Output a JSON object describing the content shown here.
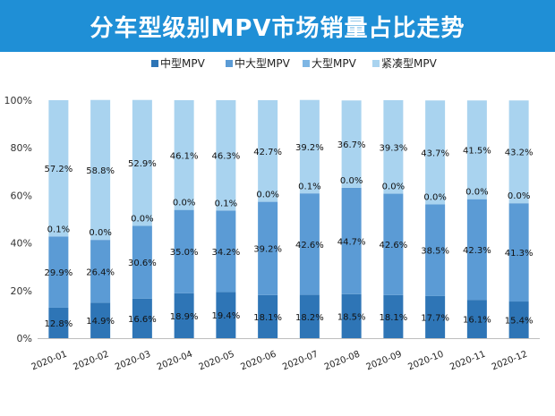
{
  "chart_data": {
    "type": "bar",
    "stacked": true,
    "title": "分车型级别MPV市场销量占比走势",
    "categories": [
      "2020-01",
      "2020-02",
      "2020-03",
      "2020-04",
      "2020-05",
      "2020-06",
      "2020-07",
      "2020-08",
      "2020-09",
      "2020-10",
      "2020-11",
      "2020-12"
    ],
    "series": [
      {
        "name": "中型MPV",
        "color": "#2e75b6",
        "values": [
          12.8,
          14.9,
          16.6,
          18.9,
          19.4,
          18.1,
          18.2,
          18.5,
          18.1,
          17.7,
          16.1,
          15.4
        ],
        "labels": [
          "12.8%",
          "14.9%",
          "16.6%",
          "18.9%",
          "19.4%",
          "18.1%",
          "18.2%",
          "18.5%",
          "18.1%",
          "17.7%",
          "16.1%",
          "15.4%"
        ]
      },
      {
        "name": "中大型MPV",
        "color": "#5b9bd5",
        "values": [
          29.9,
          26.4,
          30.6,
          35.0,
          34.2,
          39.2,
          42.6,
          44.7,
          42.6,
          38.5,
          42.3,
          41.3
        ],
        "labels": [
          "29.9%",
          "26.4%",
          "30.6%",
          "35.0%",
          "34.2%",
          "39.2%",
          "42.6%",
          "44.7%",
          "42.6%",
          "38.5%",
          "42.3%",
          "41.3%"
        ]
      },
      {
        "name": "大型MPV",
        "color": "#7eb6e4",
        "values": [
          0.1,
          0.0,
          0.0,
          0.0,
          0.1,
          0.0,
          0.1,
          0.0,
          0.0,
          0.0,
          0.0,
          0.0
        ],
        "labels": [
          "0.1%",
          "0.0%",
          "0.0%",
          "0.0%",
          "0.1%",
          "0.0%",
          "0.1%",
          "0.0%",
          "0.0%",
          "0.0%",
          "0.0%",
          "0.0%"
        ]
      },
      {
        "name": "紧凑型MPV",
        "color": "#a9d3ef",
        "values": [
          57.2,
          58.8,
          52.9,
          46.1,
          46.3,
          42.7,
          39.2,
          36.7,
          39.3,
          43.7,
          41.5,
          43.2
        ],
        "labels": [
          "57.2%",
          "58.8%",
          "52.9%",
          "46.1%",
          "46.3%",
          "42.7%",
          "39.2%",
          "36.7%",
          "39.3%",
          "43.7%",
          "41.5%",
          "43.2%"
        ]
      }
    ],
    "ylim": [
      0,
      100
    ],
    "yticks": [
      0,
      20,
      40,
      60,
      80,
      100
    ],
    "ytick_labels": [
      "0%",
      "20%",
      "40%",
      "60%",
      "80%",
      "100%"
    ],
    "legend_position": "top",
    "grid": false
  }
}
